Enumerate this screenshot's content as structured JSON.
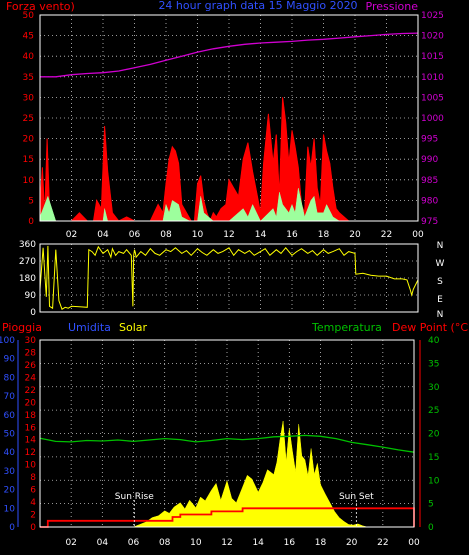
{
  "colors": {
    "background": "#000000",
    "frame": "#ffffff",
    "grid": "#c8c8c8",
    "wind_speed": "#ff0000",
    "wind_gust": "#9dff9d",
    "pressure": "#d000d0",
    "direction": "#ffff00",
    "rain": "#ff0000",
    "humidity": "#3050ff",
    "solar": "#ffff00",
    "temperature": "#00c000",
    "dewpoint": "#ff0000"
  },
  "chart_data": [
    {
      "type": "line",
      "header": {
        "left": "Forza vento)",
        "center": "24 hour graph data   15 Maggio 2020",
        "right": "Pressione"
      },
      "x": {
        "ticks": [
          "02",
          "04",
          "06",
          "08",
          "10",
          "12",
          "14",
          "16",
          "18",
          "20",
          "22",
          "00"
        ],
        "range": [
          0,
          24
        ]
      },
      "left_axis": {
        "range": [
          0,
          50
        ],
        "ticks": [
          0,
          5,
          10,
          15,
          20,
          25,
          30,
          35,
          40,
          45,
          50
        ]
      },
      "right_axis": {
        "range": [
          975,
          1025
        ],
        "ticks": [
          975,
          980,
          985,
          990,
          995,
          1000,
          1005,
          1010,
          1015,
          1020,
          1025
        ]
      },
      "series": [
        {
          "key": "wind",
          "axis": "left",
          "x": [
            0,
            0.15,
            0.3,
            0.45,
            0.6,
            0.75,
            1,
            1.5,
            2,
            2.5,
            3,
            3.4,
            3.6,
            3.9,
            4.1,
            4.3,
            4.6,
            5,
            5.5,
            6,
            6.5,
            7,
            7.5,
            7.8,
            8,
            8.2,
            8.4,
            8.6,
            8.8,
            9,
            9.3,
            9.6,
            9.8,
            10,
            10.2,
            10.4,
            10.6,
            10.8,
            11,
            11.2,
            11.5,
            11.8,
            12,
            12.3,
            12.6,
            12.9,
            13.2,
            13.5,
            13.8,
            14,
            14.2,
            14.5,
            14.8,
            15,
            15.2,
            15.4,
            15.6,
            15.8,
            16,
            16.2,
            16.4,
            16.6,
            16.8,
            17,
            17.2,
            17.4,
            17.6,
            17.8,
            18,
            18.2,
            18.4,
            18.6,
            18.8,
            19,
            19.3,
            19.6,
            20,
            21,
            22,
            23,
            24
          ],
          "values": [
            4,
            13,
            1,
            20,
            3,
            1,
            0,
            0,
            0,
            2,
            0,
            0,
            5,
            3,
            23,
            12,
            2,
            0,
            1,
            0,
            0,
            0,
            4,
            2,
            9,
            15,
            18,
            17,
            14,
            4,
            2,
            0,
            0,
            9,
            11,
            5,
            2,
            0,
            2,
            1,
            3,
            4,
            10,
            8,
            6,
            15,
            19,
            12,
            6,
            2,
            14,
            26,
            14,
            21,
            6,
            30,
            24,
            14,
            22,
            18,
            13,
            4,
            2,
            18,
            13,
            20,
            8,
            4,
            21,
            17,
            14,
            8,
            3,
            2,
            1,
            0,
            0,
            0,
            0,
            0,
            0
          ]
        },
        {
          "key": "gust",
          "axis": "left",
          "x": [
            0,
            0.5,
            1,
            3,
            4,
            4.1,
            4.3,
            6,
            7.8,
            8,
            8.2,
            8.4,
            8.8,
            9,
            9.5,
            10,
            10.2,
            10.4,
            11,
            12,
            12.9,
            13.2,
            13.5,
            14,
            14.8,
            15,
            15.2,
            15.4,
            15.8,
            16,
            16.2,
            16.4,
            16.8,
            17,
            17.2,
            17.4,
            17.6,
            18,
            18.2,
            18.6,
            19,
            20,
            24
          ],
          "values": [
            1,
            6,
            0,
            0,
            0,
            3,
            0,
            0,
            0,
            4,
            2,
            5,
            4,
            1,
            0,
            0,
            6,
            2,
            0,
            0,
            3,
            1,
            4,
            0,
            3,
            1,
            7,
            4,
            2,
            4,
            2,
            8,
            1,
            3,
            5,
            6,
            2,
            2,
            4,
            1,
            0,
            0,
            0
          ]
        },
        {
          "key": "pressure",
          "axis": "right",
          "x": [
            0,
            1,
            2,
            3,
            4,
            5,
            6,
            7,
            8,
            9,
            10,
            11,
            12,
            13,
            14,
            15,
            16,
            17,
            18,
            19,
            20,
            21,
            22,
            23,
            24
          ],
          "values": [
            1010,
            1010,
            1010.5,
            1010.8,
            1011,
            1011.4,
            1012.2,
            1013,
            1014,
            1015,
            1016,
            1016.8,
            1017.4,
            1017.9,
            1018.2,
            1018.4,
            1018.6,
            1018.9,
            1019.1,
            1019.4,
            1019.7,
            1020,
            1020.3,
            1020.5,
            1020.6
          ]
        }
      ]
    },
    {
      "type": "line",
      "x": {
        "range": [
          0,
          24
        ]
      },
      "y": {
        "range": [
          0,
          360
        ],
        "ticks": [
          0,
          90,
          180,
          270,
          360
        ]
      },
      "compass": [
        "N",
        "W",
        "S",
        "E",
        "N"
      ],
      "series": [
        {
          "key": "direction",
          "x": [
            0,
            0.2,
            0.4,
            0.5,
            0.6,
            0.8,
            1,
            1.2,
            1.4,
            1.6,
            1.8,
            2,
            2.5,
            3,
            3.1,
            3.3,
            3.5,
            3.7,
            4,
            4.3,
            4.5,
            4.6,
            4.8,
            5,
            5.3,
            5.5,
            5.8,
            5.9,
            5.95,
            6,
            6.05,
            6.1,
            6.4,
            6.7,
            7,
            7.3,
            7.6,
            8,
            8.3,
            8.6,
            9,
            9.3,
            9.6,
            10,
            10.3,
            10.6,
            11,
            11.3,
            11.6,
            12,
            12.3,
            12.6,
            13,
            13.3,
            13.6,
            14,
            14.3,
            14.6,
            15,
            15.3,
            15.6,
            16,
            16.3,
            16.6,
            17,
            17.3,
            17.6,
            18,
            18.3,
            18.6,
            19,
            19.3,
            19.6,
            20,
            20.05,
            20.5,
            21,
            21.5,
            22,
            22.5,
            23,
            23.3,
            23.5,
            23.6,
            23.7,
            24
          ],
          "values": [
            120,
            340,
            80,
            350,
            30,
            20,
            330,
            60,
            15,
            25,
            20,
            30,
            28,
            25,
            330,
            320,
            300,
            345,
            310,
            330,
            290,
            335,
            300,
            320,
            310,
            330,
            300,
            30,
            300,
            330,
            315,
            290,
            320,
            300,
            335,
            310,
            300,
            330,
            320,
            340,
            310,
            325,
            300,
            335,
            315,
            300,
            330,
            310,
            320,
            340,
            300,
            330,
            310,
            325,
            300,
            320,
            335,
            300,
            330,
            310,
            340,
            300,
            320,
            335,
            310,
            325,
            300,
            330,
            310,
            320,
            335,
            300,
            320,
            310,
            200,
            205,
            195,
            190,
            190,
            175,
            175,
            170,
            120,
            90,
            120,
            170
          ]
        }
      ]
    },
    {
      "type": "line",
      "header": {
        "rain": "Pioggia",
        "humidity": "Umidita",
        "solar": "Solar",
        "temperature": "Temperatura",
        "dewpoint": "Dew Point (°C)"
      },
      "annotations": {
        "sunrise": "Sun Rise",
        "sunset": "Sun Set",
        "sunrise_hour": 6.05,
        "sunset_hour": 20.3
      },
      "x": {
        "ticks": [
          "02",
          "04",
          "06",
          "08",
          "10",
          "12",
          "14",
          "16",
          "18",
          "20",
          "22",
          "00"
        ],
        "range": [
          0,
          24
        ]
      },
      "humidity_axis": {
        "range": [
          0,
          100
        ],
        "ticks": [
          0,
          10,
          20,
          30,
          40,
          50,
          60,
          70,
          80,
          90,
          100
        ]
      },
      "rain_axis": {
        "range": [
          0,
          30
        ],
        "ticks": [
          0,
          2,
          4,
          6,
          8,
          10,
          12,
          14,
          16,
          18,
          20,
          22,
          24,
          26,
          28,
          30
        ]
      },
      "temperature_axis": {
        "range": [
          0,
          40
        ],
        "ticks": [
          0,
          5,
          10,
          15,
          20,
          25,
          30,
          35,
          40
        ]
      },
      "series": [
        {
          "key": "solar",
          "axis": "rain",
          "x": [
            0,
            6,
            6.3,
            6.8,
            7.2,
            7.6,
            8,
            8.3,
            8.6,
            9,
            9.3,
            9.6,
            10,
            10.3,
            10.6,
            11,
            11.3,
            11.6,
            12,
            12.3,
            12.6,
            13,
            13.3,
            13.6,
            14,
            14.3,
            14.6,
            15,
            15.2,
            15.4,
            15.6,
            15.8,
            16,
            16.2,
            16.4,
            16.6,
            16.8,
            17,
            17.2,
            17.4,
            17.6,
            17.8,
            18,
            18.3,
            18.6,
            18.9,
            19.2,
            19.5,
            19.8,
            20.1,
            20.4,
            20.7,
            21,
            24
          ],
          "values": [
            0,
            0,
            0.3,
            0.8,
            1.5,
            1.8,
            2.6,
            2.2,
            3.2,
            3.9,
            2.9,
            4.3,
            3.1,
            4.8,
            4.2,
            5.9,
            7,
            4.3,
            7.4,
            4.6,
            3.9,
            6.4,
            8.3,
            7.7,
            5.6,
            7.1,
            9.2,
            8.4,
            10.4,
            14,
            17,
            10.5,
            15.8,
            12.2,
            8.8,
            16.5,
            11.4,
            10.8,
            8.2,
            12.6,
            8.4,
            10.2,
            6.8,
            5.3,
            3.9,
            2.5,
            1.5,
            0.9,
            0.4,
            0.3,
            0.5,
            0.2,
            0,
            0
          ]
        },
        {
          "key": "temperature",
          "axis": "temperature",
          "x": [
            0,
            1,
            2,
            3,
            4,
            5,
            6,
            7,
            8,
            9,
            10,
            11,
            12,
            13,
            14,
            15,
            16,
            17,
            18,
            19,
            20,
            21,
            22,
            23,
            24
          ],
          "values": [
            19,
            18.3,
            18.2,
            18.5,
            18.4,
            18.6,
            18.3,
            18.6,
            18.9,
            18.7,
            18.2,
            18.5,
            18.9,
            18.7,
            18.9,
            19.3,
            19.4,
            19.6,
            19.4,
            18.9,
            18.1,
            17.6,
            17.1,
            16.5,
            16
          ]
        },
        {
          "key": "rain",
          "axis": "rain",
          "x": [
            0,
            0.4,
            0.5,
            1,
            3,
            5,
            7,
            8.5,
            9,
            10,
            11,
            12,
            13,
            14,
            15,
            16,
            17,
            18,
            19,
            20,
            21,
            22,
            23,
            24
          ],
          "values": [
            0,
            0,
            1,
            1,
            1,
            1,
            1,
            1.6,
            2,
            2,
            2.5,
            2.5,
            3,
            3,
            3,
            3,
            3,
            3,
            3,
            3,
            3,
            3,
            3,
            3
          ]
        }
      ]
    }
  ]
}
